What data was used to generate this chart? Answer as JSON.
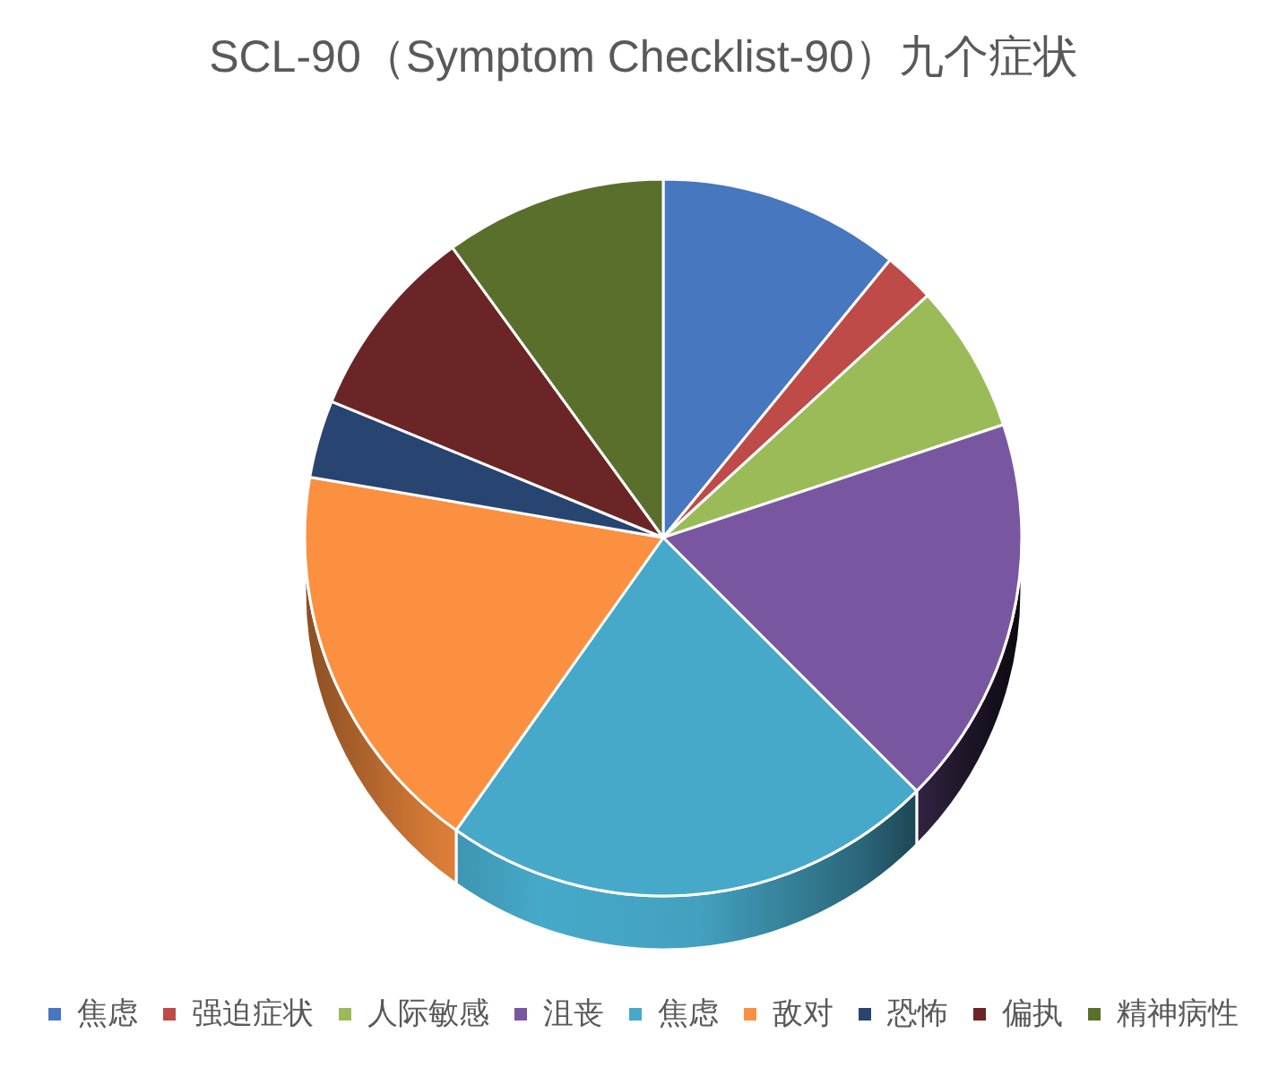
{
  "chart_data": {
    "type": "pie",
    "title": "SCL-90（Symptom Checklist-90）九个症状",
    "categories": [
      "焦虑",
      "强迫症状",
      "人际敏感",
      "沮丧",
      "焦虑",
      "敌对",
      "恐怖",
      "偏执",
      "精神病性"
    ],
    "values": [
      10.9,
      2.3,
      6.7,
      17.6,
      22.3,
      17.9,
      3.5,
      8.8,
      10.0
    ],
    "colors": [
      "#4677bf",
      "#be4b48",
      "#9bbb59",
      "#7957a0",
      "#46a9c9",
      "#fb9040",
      "#274570",
      "#6b2527",
      "#5b6f2c"
    ],
    "legend": "bottom"
  }
}
